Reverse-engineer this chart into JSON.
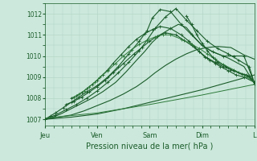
{
  "bg_color": "#cce8dc",
  "grid_color": "#b0d4c4",
  "line_color_dark": "#1a5c2a",
  "line_color_mid": "#2d7a3a",
  "line_color_light": "#4a9a5a",
  "title": "Pression niveau de la mer( hPa )",
  "xlabel_days": [
    "Jeu",
    "Ven",
    "Sam",
    "Dim",
    "L"
  ],
  "xlim": [
    0,
    4.0
  ],
  "ylim": [
    1006.7,
    1012.5
  ],
  "yticks": [
    1007,
    1008,
    1009,
    1010,
    1011,
    1012
  ],
  "day_positions": [
    0.0,
    1.0,
    2.0,
    3.0,
    4.0
  ],
  "series": [
    {
      "x": [
        0.0,
        0.1,
        0.2,
        0.35,
        0.5,
        0.65,
        0.8,
        1.0,
        1.2,
        1.4,
        1.6,
        1.8,
        1.95,
        2.05,
        2.2,
        2.4,
        2.6,
        2.8,
        3.0,
        3.2,
        3.4,
        3.6,
        3.8,
        4.0
      ],
      "y": [
        1007.0,
        1007.15,
        1007.3,
        1007.55,
        1007.8,
        1008.05,
        1008.3,
        1008.6,
        1009.0,
        1009.5,
        1010.1,
        1010.7,
        1011.2,
        1011.8,
        1012.2,
        1012.1,
        1011.5,
        1011.0,
        1010.5,
        1010.2,
        1010.0,
        1010.0,
        1010.0,
        1008.7
      ],
      "style": "dark",
      "lw": 0.8,
      "marker": true
    },
    {
      "x": [
        0.0,
        0.2,
        0.4,
        0.6,
        0.8,
        1.0,
        1.2,
        1.4,
        1.6,
        1.8,
        1.95,
        2.1,
        2.3,
        2.5,
        2.7,
        2.9,
        3.1,
        3.3,
        3.5,
        3.7,
        3.9,
        4.0
      ],
      "y": [
        1007.0,
        1007.2,
        1007.45,
        1007.7,
        1008.0,
        1008.35,
        1008.75,
        1009.2,
        1009.7,
        1010.25,
        1010.75,
        1011.3,
        1011.85,
        1012.25,
        1011.7,
        1011.2,
        1010.7,
        1010.35,
        1010.1,
        1009.8,
        1009.5,
        1008.7
      ],
      "style": "dark",
      "lw": 0.8,
      "marker": true
    },
    {
      "x": [
        0.0,
        0.15,
        0.3,
        0.5,
        0.7,
        0.9,
        1.1,
        1.35,
        1.55,
        1.75,
        1.9,
        2.05,
        2.2,
        2.4,
        2.55,
        2.7,
        2.85,
        3.0,
        3.2,
        3.5,
        3.8,
        4.0
      ],
      "y": [
        1007.0,
        1007.1,
        1007.25,
        1007.5,
        1007.75,
        1008.0,
        1008.3,
        1008.75,
        1009.25,
        1009.8,
        1010.2,
        1010.65,
        1011.0,
        1011.3,
        1011.5,
        1011.35,
        1010.9,
        1010.5,
        1010.2,
        1009.9,
        1009.5,
        1008.7
      ],
      "style": "dark",
      "lw": 0.8,
      "marker": false
    },
    {
      "x": [
        0.0,
        0.25,
        0.5,
        0.75,
        1.0,
        1.25,
        1.5,
        1.75,
        1.95,
        2.1,
        2.3,
        2.5,
        2.7,
        2.9,
        3.1,
        3.3,
        3.55,
        3.8,
        4.0
      ],
      "y": [
        1007.0,
        1007.1,
        1007.2,
        1007.4,
        1007.65,
        1007.9,
        1008.2,
        1008.55,
        1008.9,
        1009.2,
        1009.55,
        1009.85,
        1010.1,
        1010.3,
        1010.4,
        1010.45,
        1010.4,
        1010.05,
        1009.85
      ],
      "style": "dark",
      "lw": 0.8,
      "marker": false
    },
    {
      "x": [
        0.0,
        0.5,
        1.0,
        1.5,
        2.0,
        2.5,
        3.0,
        3.5,
        4.0
      ],
      "y": [
        1007.0,
        1007.1,
        1007.25,
        1007.5,
        1007.8,
        1008.1,
        1008.4,
        1008.75,
        1009.1
      ],
      "style": "dark",
      "lw": 0.8,
      "marker": false
    },
    {
      "x": [
        0.0,
        1.0,
        2.0,
        3.0,
        4.0
      ],
      "y": [
        1007.05,
        1007.3,
        1007.7,
        1008.15,
        1008.65
      ],
      "style": "mid",
      "lw": 0.7,
      "marker": false
    },
    {
      "x": [
        0.4,
        0.55,
        0.7,
        0.85,
        1.0,
        1.15,
        1.3,
        1.5,
        1.7,
        1.85,
        2.0,
        2.15,
        2.3,
        2.5,
        2.65,
        2.8,
        2.95,
        3.1,
        3.25,
        3.4,
        3.55,
        3.7,
        3.85,
        4.0
      ],
      "y": [
        1007.7,
        1007.85,
        1008.05,
        1008.3,
        1008.55,
        1008.85,
        1009.2,
        1009.65,
        1010.1,
        1010.4,
        1010.7,
        1010.95,
        1011.1,
        1011.0,
        1010.75,
        1010.5,
        1010.2,
        1009.9,
        1009.7,
        1009.5,
        1009.35,
        1009.2,
        1009.1,
        1008.75
      ],
      "style": "dark",
      "lw": 0.8,
      "marker": true
    },
    {
      "x": [
        0.5,
        0.6,
        0.7,
        0.8,
        0.9,
        1.0,
        1.1,
        1.2,
        1.3,
        1.45,
        1.6,
        1.75,
        1.9,
        2.05,
        2.2,
        2.4,
        2.6,
        2.75,
        2.85,
        2.95,
        3.05,
        3.15,
        3.25,
        3.35,
        3.5,
        3.65,
        3.8,
        4.0
      ],
      "y": [
        1008.0,
        1008.1,
        1008.25,
        1008.45,
        1008.65,
        1008.85,
        1009.1,
        1009.35,
        1009.65,
        1010.05,
        1010.45,
        1010.8,
        1011.05,
        1011.25,
        1011.4,
        1011.3,
        1011.0,
        1010.7,
        1010.45,
        1010.2,
        1009.95,
        1009.8,
        1009.65,
        1009.5,
        1009.3,
        1009.1,
        1009.0,
        1008.75
      ],
      "style": "dark",
      "lw": 0.8,
      "marker": true
    },
    {
      "x": [
        0.55,
        0.65,
        0.75,
        0.85,
        0.95,
        1.05,
        1.2,
        1.35,
        1.5,
        1.65,
        1.8,
        1.95,
        2.1,
        2.25,
        2.4,
        2.6,
        2.8,
        2.95,
        3.1,
        3.25,
        3.4,
        3.6,
        3.8,
        4.0
      ],
      "y": [
        1008.05,
        1008.2,
        1008.35,
        1008.55,
        1008.75,
        1009.0,
        1009.3,
        1009.65,
        1010.0,
        1010.3,
        1010.55,
        1010.75,
        1010.9,
        1011.0,
        1011.0,
        1010.8,
        1010.55,
        1010.35,
        1010.1,
        1009.85,
        1009.6,
        1009.35,
        1009.1,
        1008.75
      ],
      "style": "mid",
      "lw": 0.7,
      "marker": true
    },
    {
      "x": [
        2.7,
        2.8,
        2.9,
        3.0,
        3.1,
        3.2,
        3.3,
        3.45,
        3.6,
        3.75,
        3.9,
        4.0
      ],
      "y": [
        1011.9,
        1011.5,
        1011.0,
        1010.6,
        1010.25,
        1009.95,
        1009.7,
        1009.5,
        1009.3,
        1009.15,
        1009.05,
        1008.75
      ],
      "style": "dark",
      "lw": 0.8,
      "marker": true
    }
  ]
}
